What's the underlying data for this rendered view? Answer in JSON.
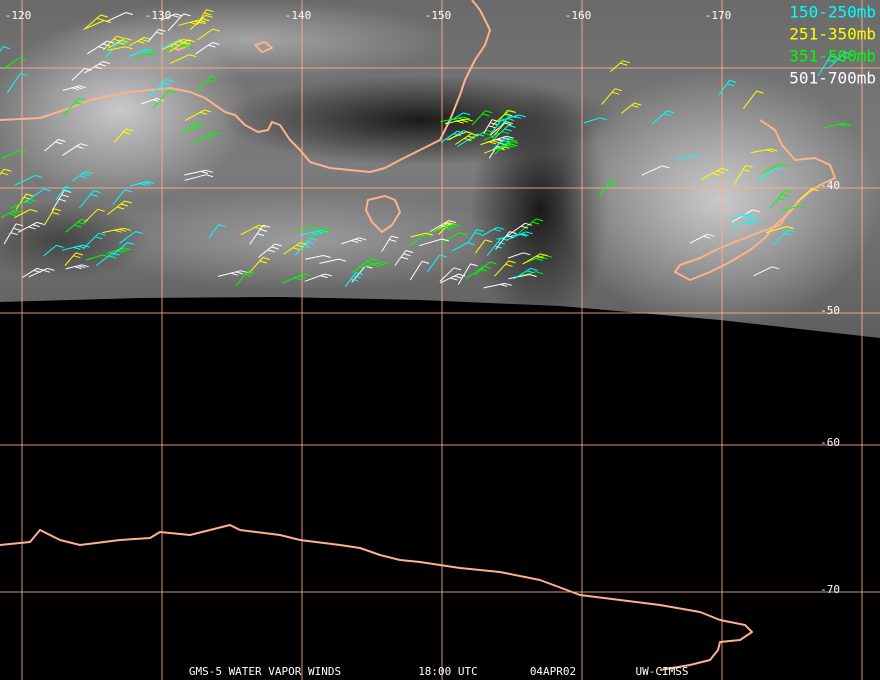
{
  "map": {
    "longitude_labels": [
      "-120",
      "-130",
      "-140",
      "-150",
      "-160",
      "-170"
    ],
    "latitude_labels": [
      "-40",
      "-50",
      "-60",
      "-70"
    ],
    "legend": [
      {
        "label": "150-250mb",
        "color": "#00ffff"
      },
      {
        "label": "251-350mb",
        "color": "#ffff00"
      },
      {
        "label": "351-500mb",
        "color": "#00ff00"
      },
      {
        "label": "501-700mb",
        "color": "#ffffff"
      }
    ],
    "footer": [
      "GMS-5 WATER VAPOR WINDS",
      "18:00 UTC",
      "04APR02",
      "UW-CIMSS"
    ]
  }
}
